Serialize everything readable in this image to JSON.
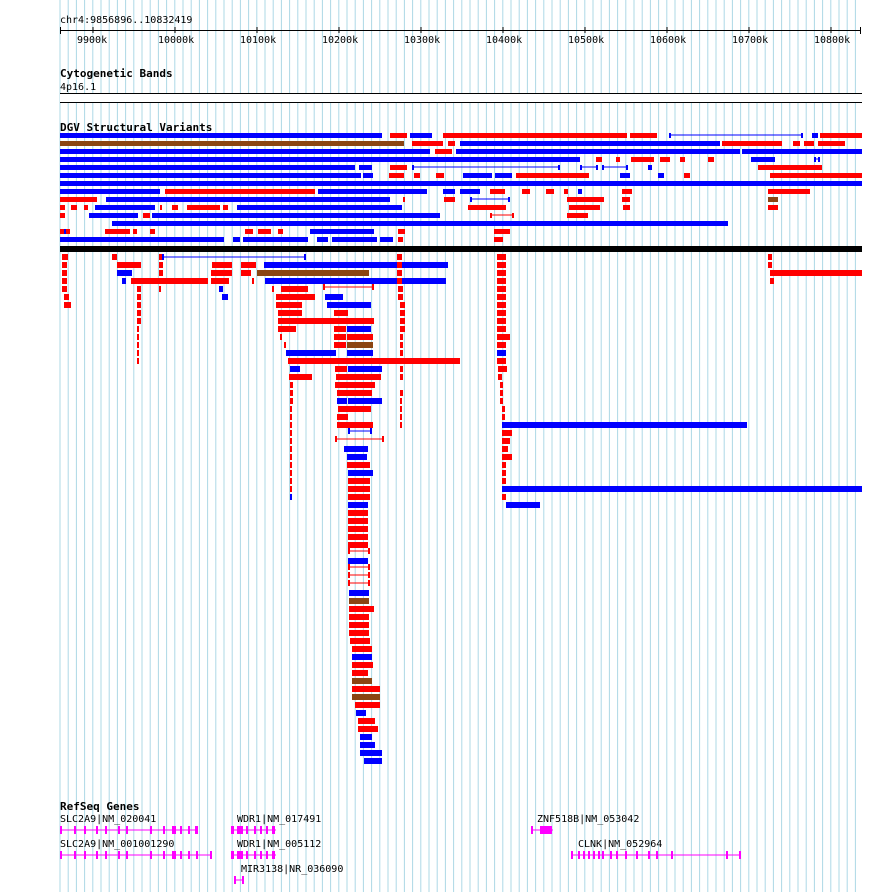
{
  "region": "chr4:9856896..10832419",
  "ruler_ticks": [
    "9900k",
    "10000k",
    "10100k",
    "10200k",
    "10300k",
    "10400k",
    "10500k",
    "10600k",
    "10700k",
    "10800k"
  ],
  "tracks": {
    "cytoband": {
      "title": "Cytogenetic Bands",
      "band": "4p16.1"
    },
    "dgv": {
      "title": "DGV Structural Variants"
    },
    "refseq": {
      "title": "RefSeq Genes"
    }
  },
  "genes": [
    {
      "label": "SLC2A9|NM_020041"
    },
    {
      "label": "SLC2A9|NM_001001290"
    },
    {
      "label": "WDR1|NM_017491"
    },
    {
      "label": "WDR1|NM_005112"
    },
    {
      "label": "MIR3138|NR_036090"
    },
    {
      "label": "ZNF518B|NM_053042"
    },
    {
      "label": "CLNK|NM_052964"
    }
  ],
  "colors": {
    "gain": "#ff0000",
    "loss": "#0000ff",
    "complex": "#8b4513",
    "gene": "#ff00ff",
    "grid": "#add8e6"
  }
}
